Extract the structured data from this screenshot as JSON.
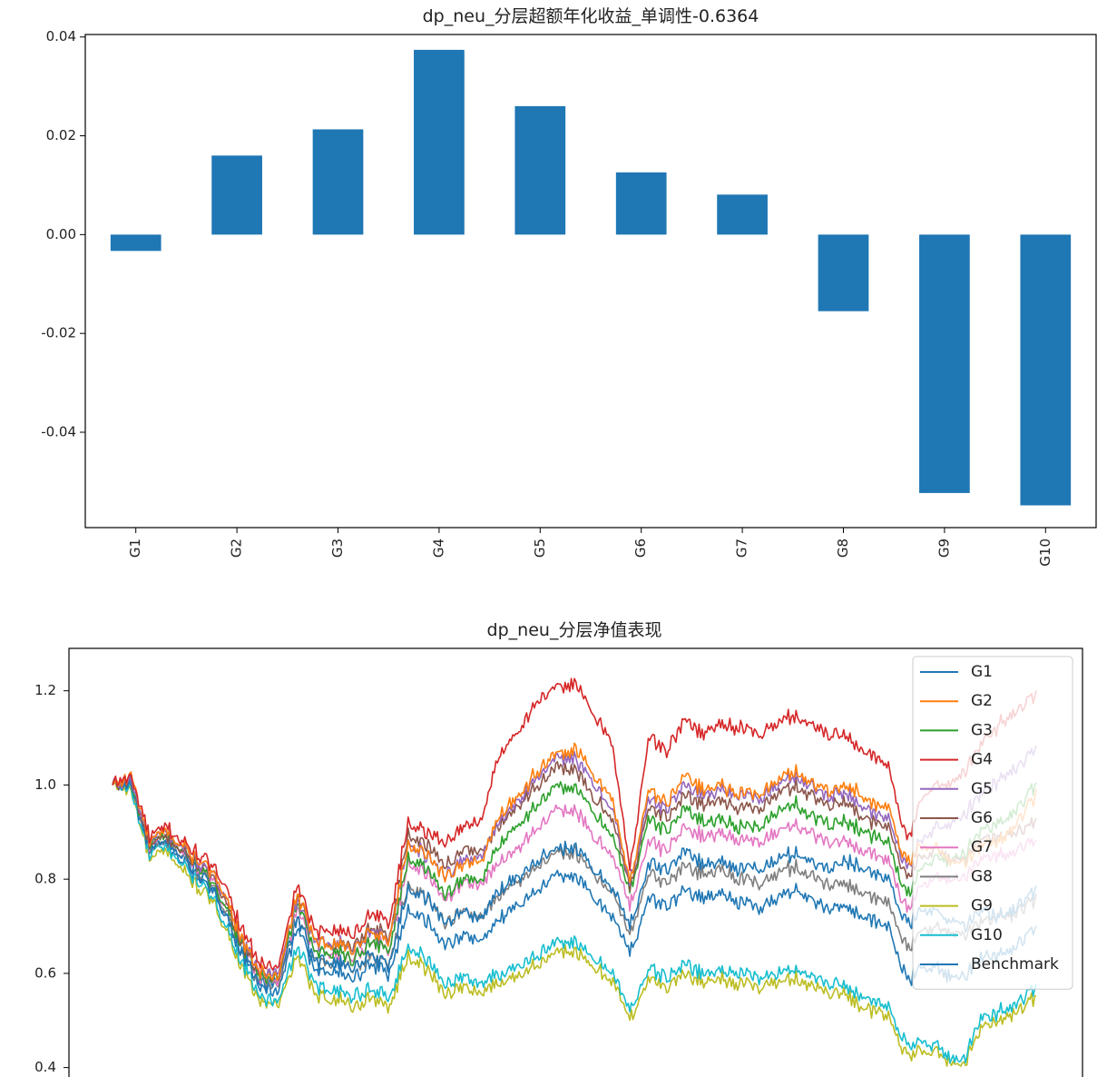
{
  "chart_data": [
    {
      "type": "bar",
      "title": "dp_neu_分层超额年化收益_单调性-0.6364",
      "categories": [
        "G1",
        "G2",
        "G3",
        "G4",
        "G5",
        "G6",
        "G7",
        "G8",
        "G9",
        "G10"
      ],
      "values": [
        -0.0033,
        0.016,
        0.0213,
        0.0374,
        0.026,
        0.0126,
        0.0081,
        -0.0155,
        -0.0523,
        -0.0548
      ],
      "ylim": [
        -0.0593,
        0.0405
      ],
      "yticks": [
        -0.04,
        -0.02,
        0.0,
        0.02,
        0.04
      ],
      "ytick_labels": [
        "-0.04",
        "-0.02",
        "0.00",
        "0.02",
        "0.04"
      ],
      "bar_color": "#1f77b4",
      "xlabel": "",
      "ylabel": ""
    },
    {
      "type": "line",
      "title": "dp_neu_分层净值表现",
      "x_range": [
        0,
        100
      ],
      "ylim": [
        0.38,
        1.29
      ],
      "yticks": [
        0.4,
        0.6,
        0.8,
        1.0,
        1.2
      ],
      "ytick_labels": [
        "0.4",
        "0.6",
        "0.8",
        "1.0",
        "1.2"
      ],
      "legend_position": "upper right",
      "x_knots": [
        0,
        2,
        4,
        6,
        8,
        10,
        12,
        14,
        16,
        18,
        20,
        22,
        24,
        26,
        28,
        30,
        32,
        34,
        36,
        38,
        40,
        42,
        44,
        46,
        48,
        50,
        52,
        54,
        56,
        58,
        60,
        62,
        64,
        66,
        68,
        70,
        72,
        74,
        76,
        78,
        80,
        82,
        84,
        86,
        88,
        90,
        92,
        94,
        96,
        98,
        100
      ],
      "series": [
        {
          "name": "G1",
          "color": "#1f77b4",
          "values": [
            1.0,
            1.0,
            0.86,
            0.88,
            0.84,
            0.8,
            0.74,
            0.64,
            0.58,
            0.58,
            0.72,
            0.62,
            0.63,
            0.61,
            0.64,
            0.62,
            0.78,
            0.76,
            0.71,
            0.73,
            0.72,
            0.78,
            0.81,
            0.84,
            0.86,
            0.87,
            0.82,
            0.79,
            0.7,
            0.83,
            0.82,
            0.86,
            0.83,
            0.84,
            0.82,
            0.82,
            0.84,
            0.86,
            0.83,
            0.83,
            0.84,
            0.81,
            0.8,
            0.7,
            0.74,
            0.72,
            0.7,
            0.73,
            0.72,
            0.74,
            0.78
          ]
        },
        {
          "name": "G2",
          "color": "#ff7f0e",
          "values": [
            1.0,
            1.02,
            0.88,
            0.9,
            0.86,
            0.83,
            0.78,
            0.67,
            0.6,
            0.59,
            0.77,
            0.66,
            0.67,
            0.65,
            0.69,
            0.67,
            0.88,
            0.85,
            0.81,
            0.83,
            0.84,
            0.94,
            0.98,
            1.03,
            1.06,
            1.08,
            1.02,
            0.98,
            0.79,
            0.99,
            0.96,
            1.02,
            0.99,
            1.0,
            0.98,
            0.98,
            1.01,
            1.03,
            1.0,
            0.99,
            1.0,
            0.96,
            0.95,
            0.83,
            0.88,
            0.85,
            0.83,
            0.87,
            0.88,
            0.92,
            0.98
          ]
        },
        {
          "name": "G3",
          "color": "#2ca02c",
          "values": [
            1.0,
            1.01,
            0.87,
            0.89,
            0.85,
            0.81,
            0.76,
            0.66,
            0.59,
            0.59,
            0.75,
            0.64,
            0.65,
            0.63,
            0.67,
            0.65,
            0.85,
            0.82,
            0.77,
            0.8,
            0.8,
            0.88,
            0.92,
            0.96,
            0.99,
            1.0,
            0.94,
            0.9,
            0.77,
            0.93,
            0.9,
            0.95,
            0.92,
            0.93,
            0.91,
            0.91,
            0.94,
            0.96,
            0.93,
            0.92,
            0.92,
            0.89,
            0.88,
            0.76,
            0.84,
            0.84,
            0.85,
            0.9,
            0.92,
            0.95,
            1.0
          ]
        },
        {
          "name": "G4",
          "color": "#d62728",
          "values": [
            1.0,
            1.02,
            0.89,
            0.91,
            0.87,
            0.84,
            0.8,
            0.69,
            0.62,
            0.61,
            0.79,
            0.68,
            0.7,
            0.68,
            0.73,
            0.71,
            0.92,
            0.9,
            0.88,
            0.91,
            0.93,
            1.07,
            1.12,
            1.18,
            1.2,
            1.22,
            1.15,
            1.1,
            0.82,
            1.1,
            1.07,
            1.14,
            1.11,
            1.13,
            1.12,
            1.11,
            1.13,
            1.15,
            1.12,
            1.11,
            1.1,
            1.06,
            1.04,
            0.88,
            0.99,
            1.0,
            1.02,
            1.08,
            1.13,
            1.16,
            1.19
          ]
        },
        {
          "name": "G5",
          "color": "#9467bd",
          "values": [
            1.0,
            1.01,
            0.88,
            0.9,
            0.86,
            0.82,
            0.78,
            0.67,
            0.6,
            0.6,
            0.76,
            0.66,
            0.67,
            0.65,
            0.69,
            0.67,
            0.88,
            0.85,
            0.81,
            0.84,
            0.85,
            0.93,
            0.97,
            1.02,
            1.05,
            1.06,
            1.0,
            0.96,
            0.79,
            0.97,
            0.95,
            1.0,
            0.98,
            0.99,
            0.98,
            0.97,
            1.0,
            1.02,
            0.99,
            0.98,
            0.98,
            0.94,
            0.93,
            0.82,
            0.9,
            0.91,
            0.93,
            0.98,
            1.01,
            1.04,
            1.08
          ]
        },
        {
          "name": "G6",
          "color": "#8c564b",
          "values": [
            1.0,
            1.01,
            0.87,
            0.89,
            0.85,
            0.82,
            0.77,
            0.66,
            0.6,
            0.59,
            0.77,
            0.66,
            0.67,
            0.66,
            0.7,
            0.68,
            0.9,
            0.87,
            0.83,
            0.86,
            0.86,
            0.92,
            0.96,
            1.0,
            1.03,
            1.04,
            0.97,
            0.94,
            0.78,
            0.95,
            0.93,
            0.98,
            0.96,
            0.97,
            0.95,
            0.95,
            0.98,
            1.0,
            0.97,
            0.96,
            0.96,
            0.92,
            0.91,
            0.8,
            0.86,
            0.85,
            0.84,
            0.88,
            0.89,
            0.9,
            0.92
          ]
        },
        {
          "name": "G7",
          "color": "#e377c2",
          "values": [
            1.0,
            1.01,
            0.87,
            0.89,
            0.85,
            0.81,
            0.76,
            0.66,
            0.59,
            0.58,
            0.74,
            0.64,
            0.65,
            0.63,
            0.67,
            0.65,
            0.84,
            0.81,
            0.76,
            0.79,
            0.79,
            0.84,
            0.87,
            0.91,
            0.94,
            0.95,
            0.89,
            0.86,
            0.74,
            0.88,
            0.86,
            0.91,
            0.89,
            0.9,
            0.88,
            0.88,
            0.9,
            0.92,
            0.89,
            0.88,
            0.88,
            0.85,
            0.84,
            0.73,
            0.8,
            0.8,
            0.8,
            0.84,
            0.85,
            0.86,
            0.88
          ]
        },
        {
          "name": "G8",
          "color": "#7f7f7f",
          "values": [
            1.0,
            1.0,
            0.86,
            0.88,
            0.84,
            0.8,
            0.75,
            0.64,
            0.58,
            0.57,
            0.72,
            0.62,
            0.63,
            0.61,
            0.64,
            0.62,
            0.79,
            0.76,
            0.71,
            0.73,
            0.72,
            0.77,
            0.8,
            0.83,
            0.85,
            0.86,
            0.81,
            0.78,
            0.68,
            0.81,
            0.79,
            0.83,
            0.81,
            0.82,
            0.8,
            0.79,
            0.81,
            0.83,
            0.8,
            0.79,
            0.79,
            0.76,
            0.75,
            0.65,
            0.7,
            0.69,
            0.68,
            0.71,
            0.72,
            0.73,
            0.76
          ]
        },
        {
          "name": "G9",
          "color": "#bcbd22",
          "values": [
            1.0,
            0.99,
            0.84,
            0.86,
            0.81,
            0.77,
            0.71,
            0.61,
            0.54,
            0.53,
            0.64,
            0.55,
            0.55,
            0.53,
            0.55,
            0.53,
            0.64,
            0.61,
            0.56,
            0.57,
            0.56,
            0.58,
            0.6,
            0.62,
            0.64,
            0.65,
            0.61,
            0.59,
            0.5,
            0.59,
            0.57,
            0.6,
            0.58,
            0.59,
            0.58,
            0.57,
            0.58,
            0.59,
            0.57,
            0.56,
            0.55,
            0.52,
            0.51,
            0.42,
            0.44,
            0.42,
            0.4,
            0.48,
            0.5,
            0.52,
            0.55
          ]
        },
        {
          "name": "G10",
          "color": "#17becf",
          "values": [
            1.0,
            0.99,
            0.85,
            0.87,
            0.82,
            0.78,
            0.72,
            0.62,
            0.55,
            0.54,
            0.66,
            0.57,
            0.57,
            0.55,
            0.57,
            0.55,
            0.66,
            0.63,
            0.58,
            0.59,
            0.58,
            0.6,
            0.62,
            0.64,
            0.66,
            0.67,
            0.63,
            0.61,
            0.52,
            0.61,
            0.59,
            0.62,
            0.6,
            0.61,
            0.6,
            0.59,
            0.6,
            0.61,
            0.59,
            0.58,
            0.57,
            0.54,
            0.53,
            0.44,
            0.46,
            0.43,
            0.41,
            0.5,
            0.52,
            0.54,
            0.57
          ]
        },
        {
          "name": "Benchmark",
          "color": "#1f77b4",
          "values": [
            1.0,
            1.0,
            0.86,
            0.87,
            0.83,
            0.79,
            0.74,
            0.64,
            0.57,
            0.56,
            0.7,
            0.6,
            0.61,
            0.59,
            0.62,
            0.6,
            0.74,
            0.71,
            0.66,
            0.68,
            0.67,
            0.72,
            0.75,
            0.78,
            0.8,
            0.81,
            0.76,
            0.73,
            0.64,
            0.76,
            0.74,
            0.78,
            0.76,
            0.77,
            0.75,
            0.74,
            0.76,
            0.78,
            0.75,
            0.74,
            0.74,
            0.71,
            0.7,
            0.58,
            0.62,
            0.6,
            0.59,
            0.63,
            0.64,
            0.66,
            0.7
          ]
        }
      ]
    }
  ]
}
